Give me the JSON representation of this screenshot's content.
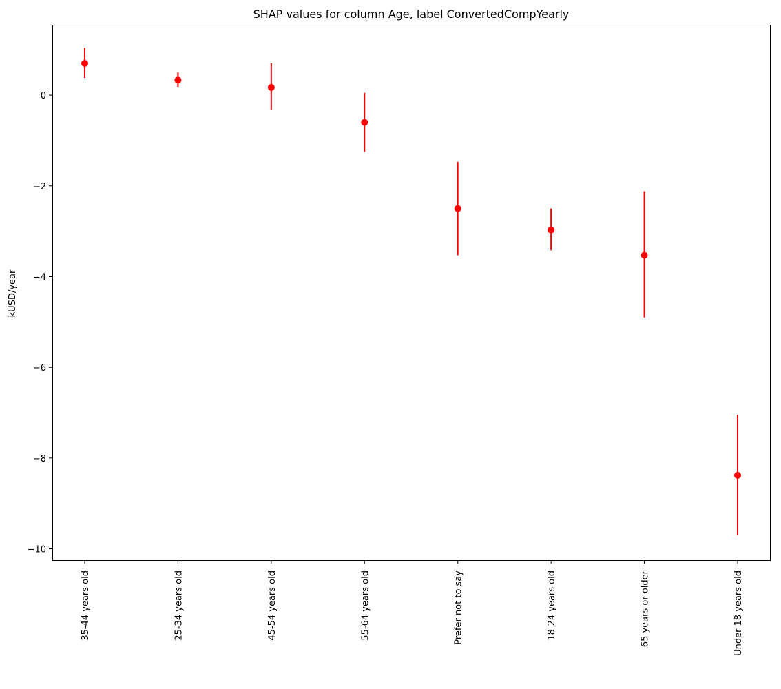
{
  "chart_data": {
    "type": "scatter",
    "title": "SHAP values for column Age, label ConvertedCompYearly",
    "xlabel": "",
    "ylabel": "kUSD/year",
    "categories": [
      "35-44 years old",
      "25-34 years old",
      "45-54 years old",
      "55-64 years old",
      "Prefer not to say",
      "18-24 years old",
      "65 years or older",
      "Under 18 years old"
    ],
    "series": [
      {
        "values": [
          0.7,
          0.33,
          0.17,
          -0.6,
          -2.5,
          -2.97,
          -3.53,
          -8.38
        ],
        "error_low": [
          0.38,
          0.18,
          -0.33,
          -1.25,
          -3.53,
          -3.42,
          -4.9,
          -9.7
        ],
        "error_high": [
          1.04,
          0.5,
          0.7,
          0.05,
          -1.47,
          -2.5,
          -2.12,
          -7.05
        ],
        "color": "#ff0000"
      }
    ],
    "ylim": [
      -10.25,
      1.55
    ],
    "yticks": [
      0,
      -2,
      -4,
      -6,
      -8,
      -10
    ],
    "ytick_labels": [
      "0",
      "−2",
      "−4",
      "−6",
      "−8",
      "−10"
    ],
    "grid": false,
    "legend": "none"
  }
}
